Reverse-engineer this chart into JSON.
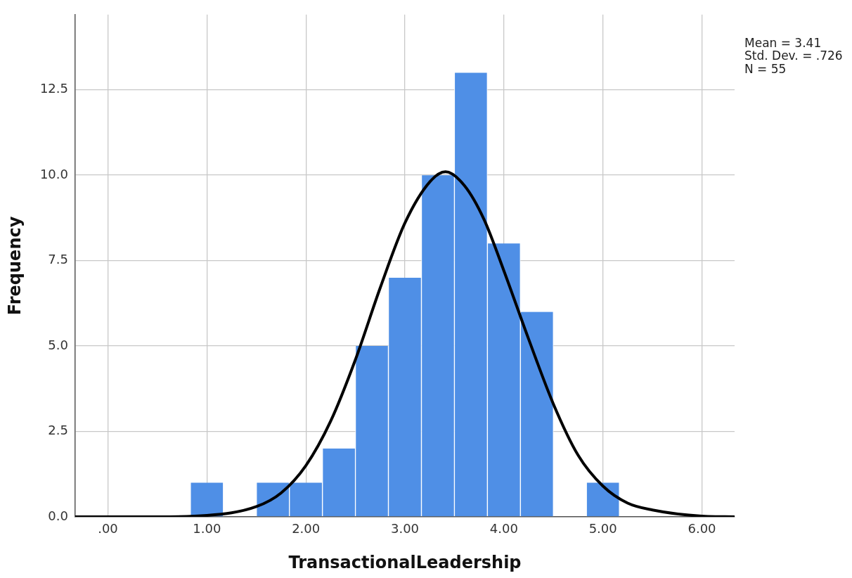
{
  "chart_data": {
    "type": "histogram",
    "xlabel": "TransactionalLeadership",
    "ylabel": "Frequency",
    "bins": [
      0.833,
      1.167,
      1.5,
      1.833,
      2.167,
      2.5,
      2.833,
      3.167,
      3.5,
      3.833,
      4.167,
      4.5,
      4.833,
      5.167
    ],
    "series": [
      {
        "color": "#4f8fe6",
        "values": [
          1,
          0,
          1,
          1,
          2,
          5,
          7,
          10,
          13,
          8,
          6,
          0,
          1
        ]
      },
      {
        "type": "line",
        "color": "#000000",
        "x": [
          -0.33,
          0.5,
          1,
          1.5,
          1.75,
          2,
          2.25,
          2.5,
          2.75,
          3,
          3.25,
          3.41,
          3.6,
          3.8,
          4,
          4.25,
          4.5,
          4.75,
          5,
          5.25,
          5.5,
          6,
          6.33
        ],
        "values": [
          0,
          0,
          0.04,
          0.3,
          0.7,
          1.5,
          2.8,
          4.6,
          6.7,
          8.6,
          9.8,
          10.1,
          9.7,
          8.7,
          7.2,
          5.2,
          3.3,
          1.8,
          0.9,
          0.4,
          0.2,
          0.02,
          0
        ]
      }
    ],
    "xlim": [
      -0.33,
      6.33
    ],
    "ylim": [
      0,
      14.7
    ],
    "xticks": [
      {
        "value": 0,
        "label": ".00"
      },
      {
        "value": 1,
        "label": "1.00"
      },
      {
        "value": 2,
        "label": "2.00"
      },
      {
        "value": 3,
        "label": "3.00"
      },
      {
        "value": 4,
        "label": "4.00"
      },
      {
        "value": 5,
        "label": "5.00"
      },
      {
        "value": 6,
        "label": "6.00"
      }
    ],
    "yticks": [
      {
        "value": 0,
        "label": "0.0"
      },
      2.5,
      {
        "value": 5,
        "label": "5.0"
      },
      7.5,
      {
        "value": 10,
        "label": "10.0"
      },
      12.5
    ],
    "grid": true,
    "annotations": [
      "Mean = 3.41",
      "Std. Dev. = .726",
      "N = 55"
    ]
  }
}
